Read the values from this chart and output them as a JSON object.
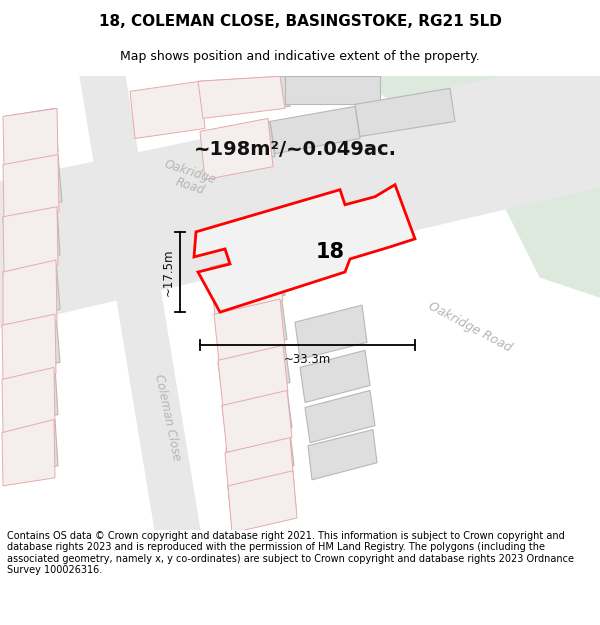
{
  "title": "18, COLEMAN CLOSE, BASINGSTOKE, RG21 5LD",
  "subtitle": "Map shows position and indicative extent of the property.",
  "footer": "Contains OS data © Crown copyright and database right 2021. This information is subject to Crown copyright and database rights 2023 and is reproduced with the permission of HM Land Registry. The polygons (including the associated geometry, namely x, y co-ordinates) are subject to Crown copyright and database rights 2023 Ordnance Survey 100026316.",
  "area_label": "~198m²/~0.049ac.",
  "width_label": "~33.3m",
  "height_label": "~17.5m",
  "number_label": "18",
  "bg_color": "#ffffff",
  "map_bg": "#f7f7f7",
  "road_color": "#e8e8e8",
  "green_fill": "#dce9dc",
  "building_fill": "#dedede",
  "building_stroke": "#b8b8b8",
  "faint_red_fill": "#f5eeee",
  "faint_red_stroke": "#e8aaaa",
  "highlight_fill": "#f2f2f2",
  "highlight_stroke": "#ff0000",
  "road_label_color": "#b5b5b5",
  "annotation_color": "#111111",
  "title_fontsize": 11,
  "subtitle_fontsize": 9,
  "footer_fontsize": 7.0,
  "area_fontsize": 14,
  "number_fontsize": 15,
  "dim_fontsize": 8.5
}
